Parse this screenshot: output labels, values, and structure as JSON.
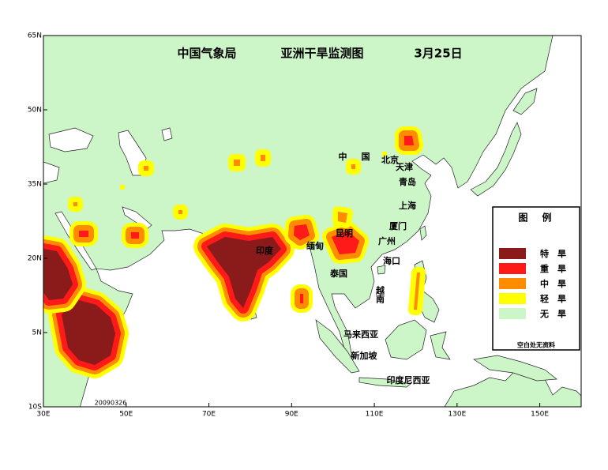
{
  "header": {
    "agency": "中国气象局",
    "title": "亚洲干旱监测图",
    "date": "3月25日"
  },
  "map": {
    "lat_ticks": [
      {
        "value": 65,
        "label": "65N"
      },
      {
        "value": 50,
        "label": "50N"
      },
      {
        "value": 35,
        "label": "35N"
      },
      {
        "value": 20,
        "label": "20N"
      },
      {
        "value": 5,
        "label": "5N"
      },
      {
        "value": -10,
        "label": "10S"
      }
    ],
    "lon_ticks": [
      {
        "value": 30,
        "label": "30E"
      },
      {
        "value": 50,
        "label": "50E"
      },
      {
        "value": 70,
        "label": "70E"
      },
      {
        "value": 90,
        "label": "90E"
      },
      {
        "value": 110,
        "label": "110E"
      },
      {
        "value": 130,
        "label": "130E"
      },
      {
        "value": 150,
        "label": "150E"
      }
    ],
    "places": [
      "印度",
      "缅甸",
      "昆明",
      "广州",
      "厦门",
      "上海",
      "青岛",
      "天津",
      "北京",
      "中",
      "国",
      "海口",
      "泰国",
      "越南",
      "马来西亚",
      "新加坡",
      "印度尼西亚"
    ],
    "stamp": "20090326"
  },
  "legend": {
    "title": "图　例",
    "items": [
      {
        "label": "特　旱",
        "color": "#8b1a1a"
      },
      {
        "label": "重　旱",
        "color": "#ff1a1a"
      },
      {
        "label": "中　旱",
        "color": "#ff8c00"
      },
      {
        "label": "轻　旱",
        "color": "#ffff00"
      },
      {
        "label": "无　旱",
        "color": "#ccf5c8"
      }
    ],
    "note": "空白处无资料"
  }
}
